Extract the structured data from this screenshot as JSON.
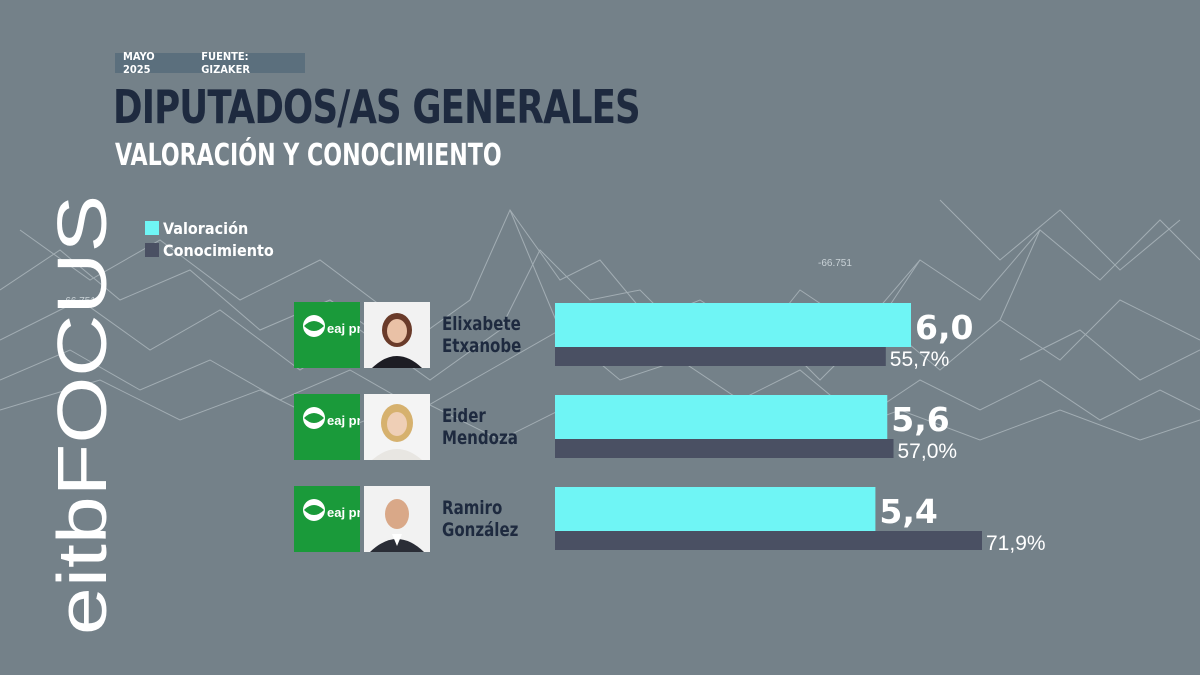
{
  "header": {
    "date": "MAYO 2025",
    "source": "FUENTE: GIZAKER",
    "title": "DIPUTADOS/AS GENERALES",
    "subtitle": "VALORACIÓN Y CONOCIMIENTO"
  },
  "brand": {
    "text": "eitbFOCUS"
  },
  "background": {
    "tag1": "-66.751",
    "tag2": "-66.751"
  },
  "legend": [
    {
      "label": "Valoración",
      "color": "#6ff5f5"
    },
    {
      "label": "Conocimiento",
      "color": "#4a5063"
    }
  ],
  "candidates": [
    {
      "name": "Elixabete\nEtxanobe",
      "party": "eaj pnv"
    },
    {
      "name": "Eider\nMendoza",
      "party": "eaj pnv"
    },
    {
      "name": "Ramiro\nGonzález",
      "party": "eaj pnv"
    }
  ],
  "chart_data": {
    "type": "bar",
    "orientation": "horizontal",
    "categories": [
      "Elixabete Etxanobe",
      "Eider Mendoza",
      "Ramiro González"
    ],
    "series": [
      {
        "name": "Valoración",
        "values": [
          6.0,
          5.6,
          5.4
        ],
        "labels": [
          "6,0",
          "5,6",
          "5,4"
        ],
        "color": "#6ff5f5"
      },
      {
        "name": "Conocimiento",
        "values": [
          55.7,
          57.0,
          71.9
        ],
        "labels": [
          "55,7%",
          "57,0%",
          "71,9%"
        ],
        "color": "#4a5063"
      }
    ],
    "title": "DIPUTADOS/AS GENERALES",
    "subtitle": "VALORACIÓN Y CONOCIMIENTO",
    "grid": false,
    "legend": "top-left"
  }
}
